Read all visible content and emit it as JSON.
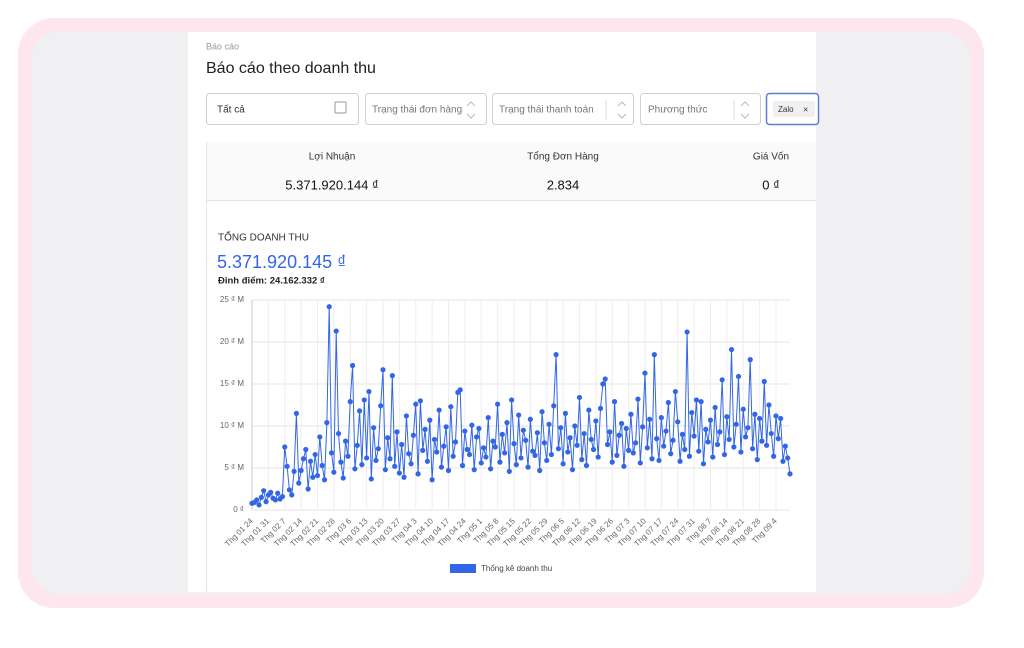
{
  "breadcrumb": "Báo cáo",
  "title": "Báo cáo theo doanh thu",
  "filters": [
    "Tất cả",
    "Trạng thái đơn hàng",
    "Trạng thái thanh toán",
    "Phương thức"
  ],
  "tag": {
    "label": "Zalo",
    "remove": "×"
  },
  "stats": [
    {
      "label": "Lợi Nhuận",
      "value": "5.371.920.144 ₫"
    },
    {
      "label": "Tổng Đơn Hàng",
      "value": "2.834"
    },
    {
      "label": "Giá Vốn",
      "value": "0 ₫"
    }
  ],
  "chart_data": {
    "type": "line",
    "title": "TỔNG DOANH THU",
    "total": "5.371.920.145 ₫",
    "peak": "Đỉnh điểm: 24.162.332 ₫",
    "ylim": [
      0,
      25
    ],
    "yticks": [
      {
        "value": 0,
        "label": "0 ₫"
      },
      {
        "value": 5,
        "label": "5 ₫ M"
      },
      {
        "value": 10,
        "label": "10 ₫ M"
      },
      {
        "value": 15,
        "label": "15 ₫ M"
      },
      {
        "value": 20,
        "label": "20 ₫ M"
      },
      {
        "value": 25,
        "label": "25 ₫ M"
      }
    ],
    "grid": true,
    "legend": "bottom",
    "categories": [
      "Thg 01 24",
      null,
      null,
      null,
      null,
      null,
      null,
      "Thg 01 31",
      null,
      null,
      null,
      null,
      null,
      null,
      "Thg 02 7",
      null,
      null,
      null,
      null,
      null,
      null,
      "Thg 02 14",
      null,
      null,
      null,
      null,
      null,
      null,
      "Thg 02 21",
      null,
      null,
      null,
      null,
      null,
      null,
      "Thg 02 28",
      null,
      null,
      null,
      null,
      null,
      null,
      "Thg 03 6",
      null,
      null,
      null,
      null,
      null,
      null,
      "Thg 03 13",
      null,
      null,
      null,
      null,
      null,
      null,
      "Thg 03 20",
      null,
      null,
      null,
      null,
      null,
      null,
      "Thg 03 27",
      null,
      null,
      null,
      null,
      null,
      null,
      "Thg 04 3",
      null,
      null,
      null,
      null,
      null,
      null,
      "Thg 04 10",
      null,
      null,
      null,
      null,
      null,
      null,
      "Thg 04 17",
      null,
      null,
      null,
      null,
      null,
      null,
      "Thg 04 24",
      null,
      null,
      null,
      null,
      null,
      null,
      "Thg 05 1",
      null,
      null,
      null,
      null,
      null,
      null,
      "Thg 05 8",
      null,
      null,
      null,
      null,
      null,
      null,
      "Thg 05 15",
      null,
      null,
      null,
      null,
      null,
      null,
      "Thg 05 22",
      null,
      null,
      null,
      null,
      null,
      null,
      "Thg 05 29",
      null,
      null,
      null,
      null,
      null,
      null,
      "Thg 06 5",
      null,
      null,
      null,
      null,
      null,
      null,
      "Thg 06 12",
      null,
      null,
      null,
      null,
      null,
      null,
      "Thg 06 19",
      null,
      null,
      null,
      null,
      null,
      null,
      "Thg 06 26",
      null,
      null,
      null,
      null,
      null,
      null,
      "Thg 07 3",
      null,
      null,
      null,
      null,
      null,
      null,
      "Thg 07 10",
      null,
      null,
      null,
      null,
      null,
      null,
      "Thg 07 17",
      null,
      null,
      null,
      null,
      null,
      null,
      "Thg 07 24",
      null,
      null,
      null,
      null,
      null,
      null,
      "Thg 07 31",
      null,
      null,
      null,
      null,
      null,
      null,
      "Thg 08 7",
      null,
      null,
      null,
      null,
      null,
      null,
      "Thg 08 14",
      null,
      null,
      null,
      null,
      null,
      null,
      "Thg 08 21",
      null,
      null,
      null,
      null,
      null,
      null,
      "Thg 08 28",
      null,
      null,
      null,
      null,
      null,
      null,
      "Thg 09 4",
      null,
      null,
      null,
      null,
      null,
      null
    ],
    "series": [
      {
        "name": "Thống kê doanh thu",
        "color": "#3366e6",
        "values": [
          0.8,
          0.9,
          1.2,
          0.6,
          1.5,
          2.3,
          1.0,
          1.8,
          2.1,
          1.4,
          1.2,
          2.0,
          1.3,
          1.6,
          7.5,
          5.2,
          2.4,
          1.8,
          4.6,
          11.5,
          3.2,
          4.7,
          6.1,
          7.2,
          2.5,
          5.8,
          3.9,
          6.6,
          4.1,
          8.7,
          5.3,
          3.6,
          10.4,
          24.2,
          6.8,
          4.5,
          21.3,
          9.1,
          5.7,
          3.8,
          8.2,
          6.4,
          12.9,
          17.2,
          4.9,
          7.7,
          11.8,
          5.4,
          13.1,
          6.2,
          14.1,
          3.7,
          9.8,
          5.9,
          7.3,
          12.4,
          16.7,
          4.8,
          8.6,
          6.1,
          16.0,
          5.2,
          9.3,
          4.4,
          7.8,
          3.9,
          11.2,
          6.7,
          5.5,
          8.9,
          12.6,
          4.3,
          13.0,
          7.1,
          9.6,
          5.8,
          10.7,
          3.6,
          8.4,
          6.9,
          11.9,
          5.1,
          7.6,
          9.9,
          4.7,
          12.3,
          6.4,
          8.1,
          14.0,
          14.3,
          5.3,
          9.4,
          7.2,
          6.6,
          10.1,
          4.8,
          8.7,
          9.7,
          5.6,
          7.4,
          6.3,
          11.0,
          4.9,
          8.2,
          7.5,
          12.6,
          5.7,
          9.0,
          6.8,
          10.4,
          4.6,
          13.1,
          7.9,
          5.4,
          11.3,
          6.2,
          9.5,
          8.3,
          5.1,
          10.8,
          7.0,
          6.5,
          9.2,
          4.7,
          11.7,
          8.0,
          5.9,
          10.2,
          6.6,
          12.4,
          18.5,
          7.3,
          9.8,
          5.5,
          11.5,
          6.9,
          8.6,
          4.8,
          10.0,
          7.7,
          13.4,
          6.0,
          9.1,
          5.3,
          11.9,
          8.4,
          7.2,
          10.6,
          6.3,
          12.1,
          15.0,
          15.6,
          7.8,
          9.3,
          5.7,
          12.9,
          6.5,
          8.9,
          10.3,
          5.2,
          9.7,
          7.1,
          11.4,
          6.8,
          8.0,
          13.2,
          5.6,
          9.9,
          16.3,
          7.4,
          10.8,
          6.1,
          18.5,
          8.5,
          5.9,
          11.0,
          7.6,
          9.4,
          12.8,
          6.7,
          8.3,
          14.1,
          10.5,
          5.8,
          9.0,
          7.2,
          21.2,
          6.4,
          11.6,
          8.8,
          13.1,
          7.0,
          12.9,
          5.5,
          9.6,
          8.1,
          10.7,
          6.3,
          12.2,
          7.8,
          9.3,
          15.5,
          6.6,
          11.1,
          8.4,
          19.1,
          7.5,
          10.2,
          15.9,
          6.9,
          12.0,
          8.7,
          9.8,
          17.9,
          7.3,
          11.4,
          6.0,
          10.9,
          8.2,
          15.3,
          7.7,
          12.5,
          9.1,
          6.4,
          11.2,
          8.5,
          10.9,
          5.8,
          7.6,
          6.2,
          4.3
        ]
      }
    ]
  }
}
